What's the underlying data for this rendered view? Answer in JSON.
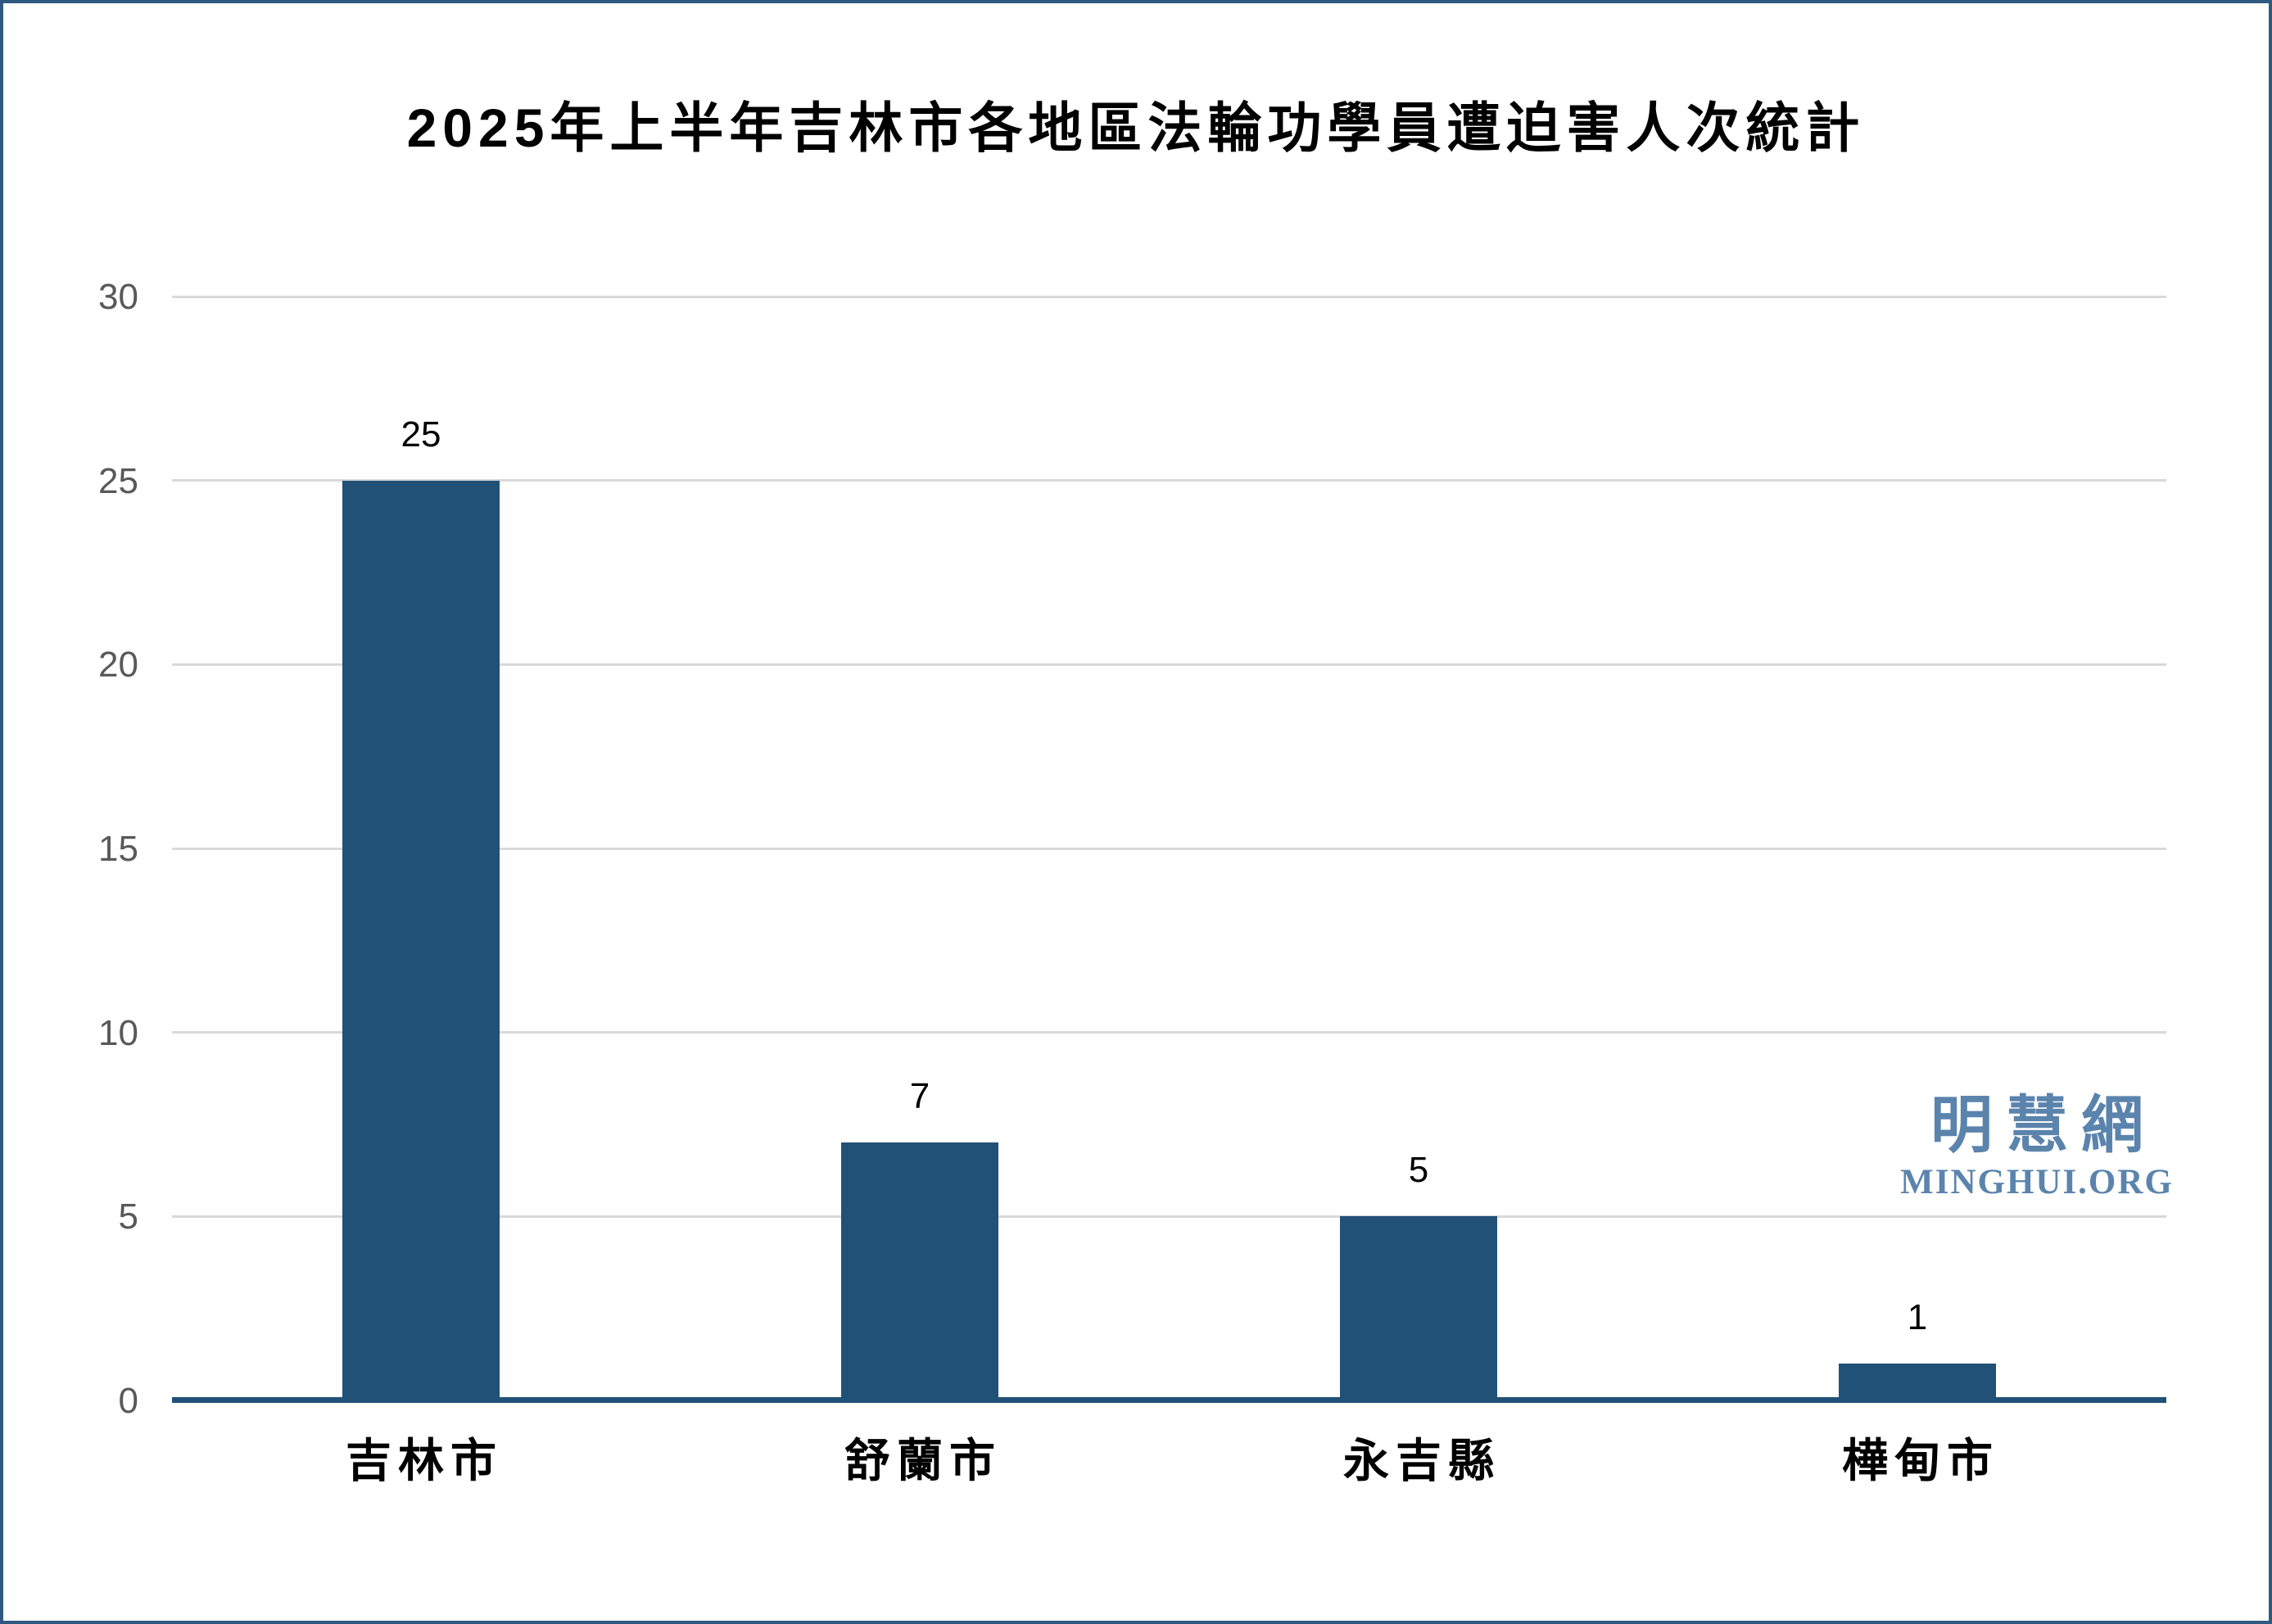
{
  "watermark": {
    "cjk": "明慧網",
    "latin": "MINGHUI.ORG"
  },
  "colors": {
    "bar": "#215177",
    "axis_line": "#215177",
    "gridline": "#d8d8d8",
    "tick_label": "#595959",
    "value_label": "#000000",
    "category_label": "#000000",
    "title": "#000000",
    "watermark": "#5b84ad",
    "frame_border": "#30597f",
    "background": "#ffffff"
  },
  "chart_data": {
    "type": "bar",
    "title": "2025年上半年吉林市各地區法輪功學員遭迫害人次統計",
    "categories": [
      "吉林市",
      "舒蘭市",
      "永吉縣",
      "樺甸市"
    ],
    "values": [
      25,
      7,
      5,
      1
    ],
    "value_labels": [
      "25",
      "7",
      "5",
      "1"
    ],
    "xlabel": "",
    "ylabel": "",
    "ylim": [
      0,
      30
    ],
    "yticks": [
      0,
      5,
      10,
      15,
      20,
      25,
      30
    ],
    "grid": true,
    "legend_position": "none",
    "bar_color": "#215177"
  }
}
